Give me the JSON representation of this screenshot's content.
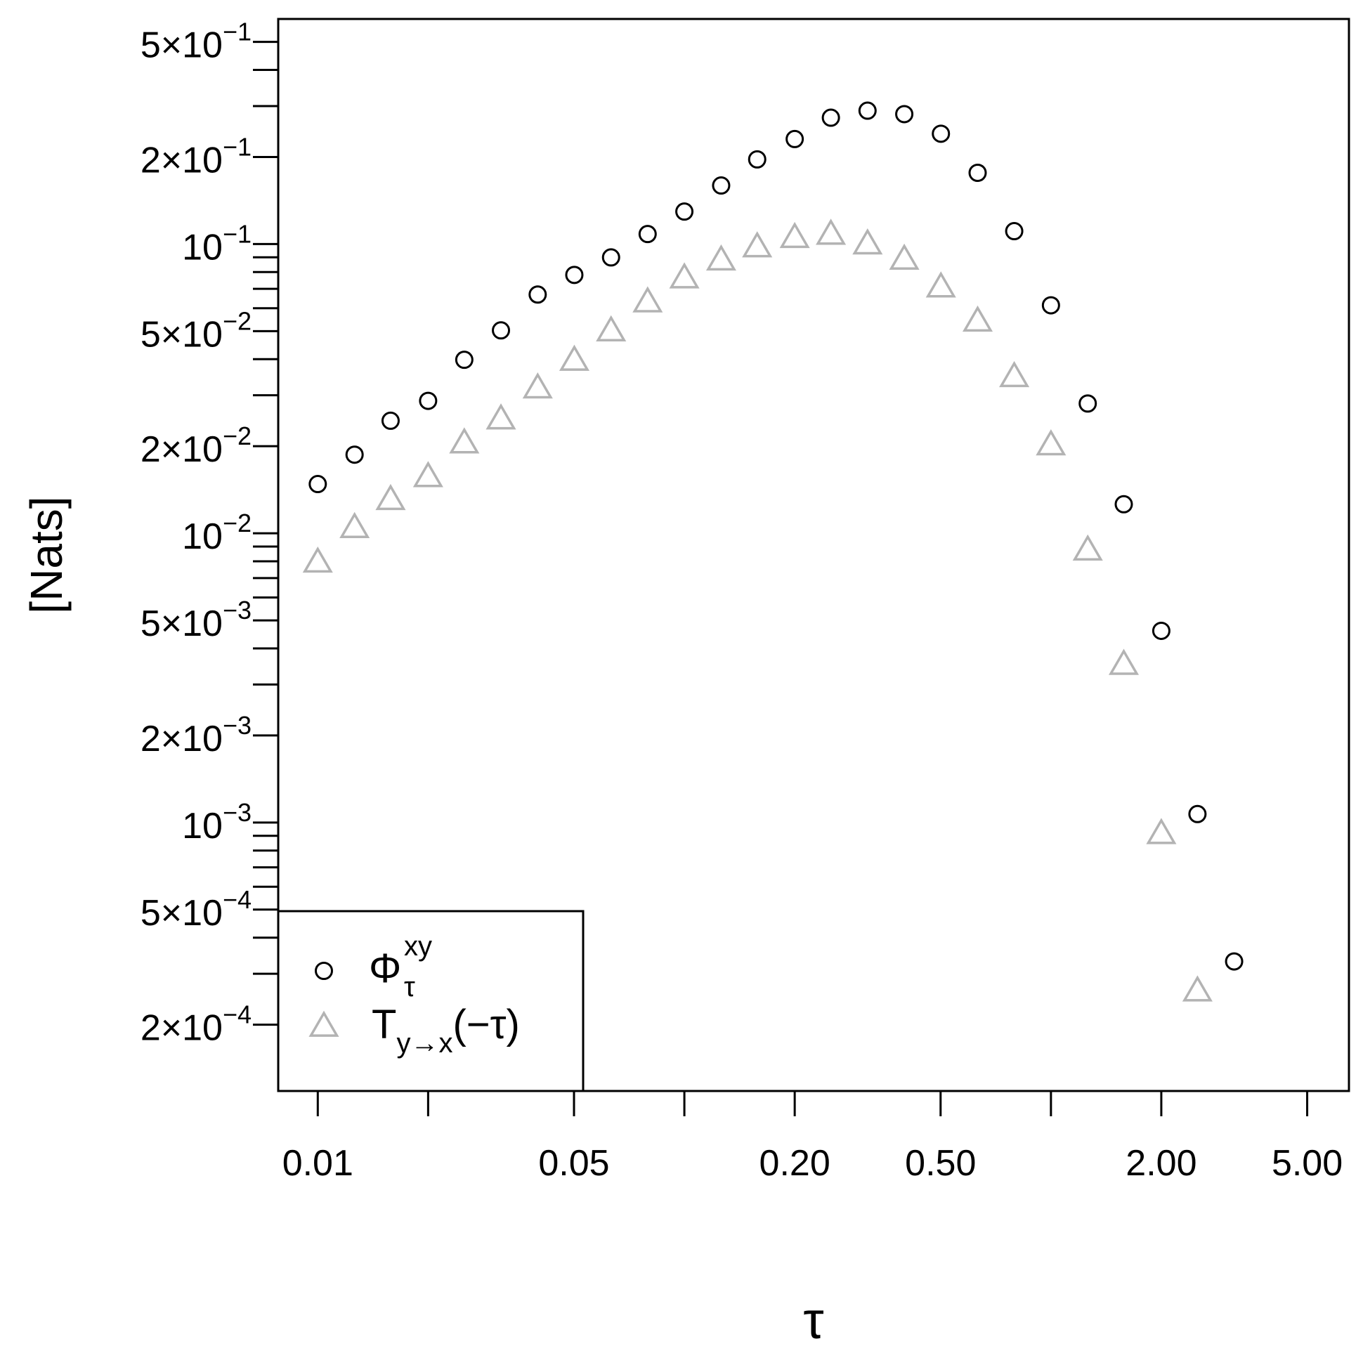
{
  "chart_data": {
    "type": "scatter",
    "xscale": "log",
    "yscale": "log",
    "xlabel": "τ",
    "ylabel": "[Nats]",
    "xlim": [
      0.0078,
      6.5
    ],
    "ylim": [
      0.000118,
      0.6
    ],
    "x_ticks": [
      0.01,
      0.02,
      0.05,
      0.1,
      0.2,
      0.5,
      1,
      2,
      5
    ],
    "x_tick_labels": [
      {
        "value": 0.01,
        "label": "0.01"
      },
      {
        "value": 0.05,
        "label": "0.05"
      },
      {
        "value": 0.2,
        "label": "0.20"
      },
      {
        "value": 0.5,
        "label": "0.50"
      },
      {
        "value": 2,
        "label": "2.00"
      },
      {
        "value": 5,
        "label": "5.00"
      }
    ],
    "y_ticks": [
      0.0002,
      0.0003,
      0.0004,
      0.0005,
      0.0006,
      0.0007,
      0.0008,
      0.0009,
      0.001,
      0.002,
      0.003,
      0.004,
      0.005,
      0.006,
      0.007,
      0.008,
      0.009,
      0.01,
      0.02,
      0.03,
      0.04,
      0.05,
      0.06,
      0.07,
      0.08,
      0.09,
      0.1,
      0.2,
      0.3,
      0.4,
      0.5
    ],
    "y_tick_labels": [
      {
        "value": 0.5,
        "mantissa": "5",
        "exponent": "−1"
      },
      {
        "value": 0.2,
        "mantissa": "2",
        "exponent": "−1"
      },
      {
        "value": 0.1,
        "mantissa": "",
        "exponent": "−1"
      },
      {
        "value": 0.05,
        "mantissa": "5",
        "exponent": "−2"
      },
      {
        "value": 0.02,
        "mantissa": "2",
        "exponent": "−2"
      },
      {
        "value": 0.01,
        "mantissa": "",
        "exponent": "−2"
      },
      {
        "value": 0.005,
        "mantissa": "5",
        "exponent": "−3"
      },
      {
        "value": 0.002,
        "mantissa": "2",
        "exponent": "−3"
      },
      {
        "value": 0.001,
        "mantissa": "",
        "exponent": "−3"
      },
      {
        "value": 0.0005,
        "mantissa": "5",
        "exponent": "−4"
      },
      {
        "value": 0.0002,
        "mantissa": "2",
        "exponent": "−4"
      }
    ],
    "y_tick_times": "×",
    "y_tick_base": "10",
    "legend": {
      "placement": "bottom-left",
      "entries": [
        {
          "symbol": "Φ",
          "sup": "xy",
          "sub": "τ"
        },
        {
          "symbol": "T",
          "sub": "y→x",
          "suffix": "(−τ)"
        }
      ]
    },
    "series": [
      {
        "marker": "circle",
        "color": "#000000",
        "x": [
          0.01,
          0.0126,
          0.0158,
          0.02,
          0.0251,
          0.0316,
          0.0398,
          0.0501,
          0.0631,
          0.0794,
          0.1,
          0.126,
          0.158,
          0.2,
          0.251,
          0.316,
          0.398,
          0.501,
          0.631,
          0.794,
          1.0,
          1.26,
          1.58,
          2.0,
          2.51,
          3.16,
          3.98,
          5.01
        ],
        "y": [
          0.0148,
          0.0187,
          0.0245,
          0.0287,
          0.0398,
          0.0503,
          0.0669,
          0.0782,
          0.0899,
          0.1083,
          0.1295,
          0.1594,
          0.1962,
          0.2307,
          0.2734,
          0.2891,
          0.2813,
          0.2407,
          0.1763,
          0.1108,
          0.0614,
          0.0281,
          0.0126,
          0.0046,
          0.00107,
          0.000331,
          0,
          0
        ]
      },
      {
        "marker": "triangle",
        "color": "#b3b3b3",
        "x": [
          0.01,
          0.0126,
          0.0158,
          0.02,
          0.0251,
          0.0316,
          0.0398,
          0.0501,
          0.0631,
          0.0794,
          0.1,
          0.126,
          0.158,
          0.2,
          0.251,
          0.316,
          0.398,
          0.501,
          0.631,
          0.794,
          1.0,
          1.26,
          1.58,
          2.0,
          2.51,
          3.16,
          3.98,
          5.01
        ],
        "y": [
          0.0079,
          0.0104,
          0.013,
          0.0156,
          0.0204,
          0.0247,
          0.0316,
          0.0394,
          0.0498,
          0.0627,
          0.0759,
          0.0875,
          0.0972,
          0.1047,
          0.1074,
          0.0995,
          0.0881,
          0.0706,
          0.0538,
          0.0346,
          0.0201,
          0.0087,
          0.0035,
          0.00091,
          0.00026,
          0,
          0,
          0
        ]
      }
    ]
  }
}
